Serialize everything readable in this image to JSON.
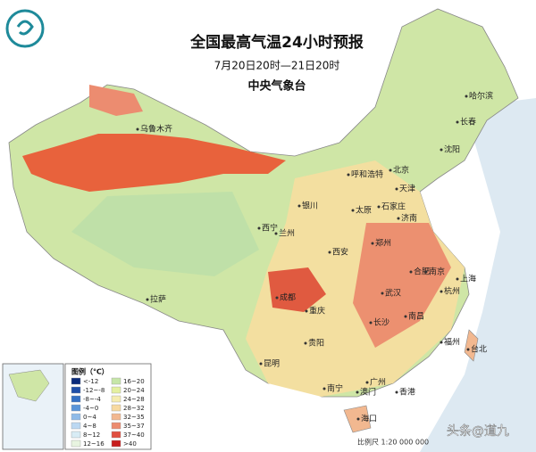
{
  "header": {
    "title": "全国最高气温24小时预报",
    "subtitle": "7月20日20时—21日20时",
    "agency": "中央气象台"
  },
  "cities": [
    "乌鲁木齐",
    "哈尔滨",
    "长春",
    "沈阳",
    "呼和浩特",
    "北京",
    "天津",
    "银川",
    "太原",
    "石家庄",
    "济南",
    "西宁",
    "兰州",
    "西安",
    "郑州",
    "合肥",
    "南京",
    "上海",
    "杭州",
    "成都",
    "重庆",
    "武汉",
    "拉萨",
    "长沙",
    "南昌",
    "福州",
    "贵阳",
    "台北",
    "昆明",
    "南宁",
    "广州",
    "澳门",
    "香港",
    "海口"
  ],
  "legend": {
    "title": "图例（℃）",
    "items": [
      {
        "label": "<-12",
        "color": "#0a2a7a"
      },
      {
        "label": "-12~-8",
        "color": "#1f4fa8"
      },
      {
        "label": "-8~-4",
        "color": "#3470c4"
      },
      {
        "label": "-4~0",
        "color": "#5a95d9"
      },
      {
        "label": "0~4",
        "color": "#8fbbe8"
      },
      {
        "label": "4~8",
        "color": "#bcd8f2"
      },
      {
        "label": "8~12",
        "color": "#d8ecf5"
      },
      {
        "label": "12~16",
        "color": "#e8f4e0"
      },
      {
        "label": "16~20",
        "color": "#c6e6a8"
      },
      {
        "label": "20~24",
        "color": "#e4f0a0"
      },
      {
        "label": "24~28",
        "color": "#f5ecb0"
      },
      {
        "label": "28~32",
        "color": "#f7d9a0"
      },
      {
        "label": "32~35",
        "color": "#f2b890"
      },
      {
        "label": "35~37",
        "color": "#ec8c70"
      },
      {
        "label": "37~40",
        "color": "#e05040"
      },
      {
        "label": ">40",
        "color": "#c81e1e"
      }
    ]
  },
  "footer": {
    "scale": "比例尺 1:20 000 000",
    "watermark": "头条@道九"
  }
}
